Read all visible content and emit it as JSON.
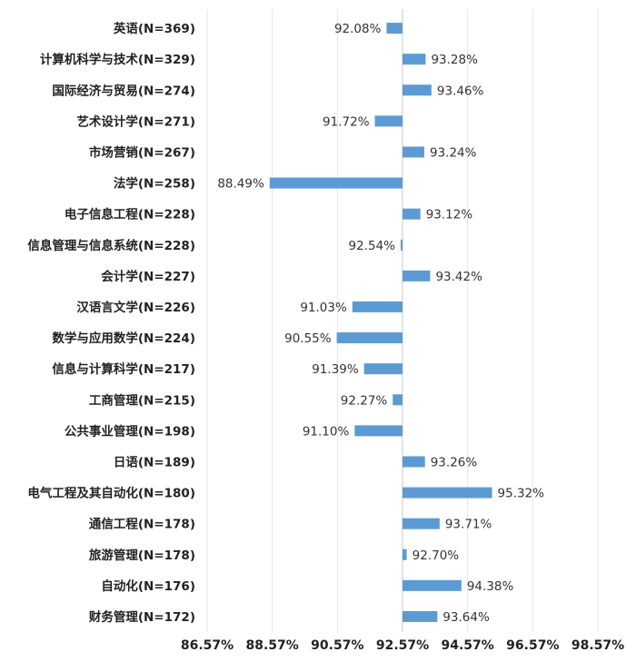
{
  "chart_data": {
    "type": "bar",
    "orientation": "horizontal",
    "title": "",
    "xlabel": "",
    "ylabel": "",
    "baseline": 92.57,
    "xlim": [
      86.57,
      98.57
    ],
    "x_ticks": [
      86.57,
      88.57,
      90.57,
      92.57,
      94.57,
      96.57,
      98.57
    ],
    "x_tick_labels": [
      "86.57%",
      "88.57%",
      "90.57%",
      "92.57%",
      "94.57%",
      "96.57%",
      "98.57%"
    ],
    "grid": true,
    "legend": "none",
    "bar_color": "#5b9bd5",
    "categories": [
      "英语(N=369)",
      "计算机科学与技术(N=329)",
      "国际经济与贸易(N=274)",
      "艺术设计学(N=271)",
      "市场营销(N=267)",
      "法学(N=258)",
      "电子信息工程(N=228)",
      "信息管理与信息系统(N=228)",
      "会计学(N=227)",
      "汉语言文学(N=226)",
      "数学与应用数学(N=224)",
      "信息与计算科学(N=217)",
      "工商管理(N=215)",
      "公共事业管理(N=198)",
      "日语(N=189)",
      "电气工程及其自动化(N=180)",
      "通信工程(N=178)",
      "旅游管理(N=178)",
      "自动化(N=176)",
      "财务管理(N=172)"
    ],
    "values": [
      92.08,
      93.28,
      93.46,
      91.72,
      93.24,
      88.49,
      93.12,
      92.54,
      93.42,
      91.03,
      90.55,
      91.39,
      92.27,
      91.1,
      93.26,
      95.32,
      93.71,
      92.7,
      94.38,
      93.64
    ],
    "value_labels": [
      "92.08%",
      "93.28%",
      "93.46%",
      "91.72%",
      "93.24%",
      "88.49%",
      "93.12%",
      "92.54%",
      "93.42%",
      "91.03%",
      "90.55%",
      "91.39%",
      "92.27%",
      "91.10%",
      "93.26%",
      "95.32%",
      "93.71%",
      "92.70%",
      "94.38%",
      "93.64%"
    ]
  }
}
